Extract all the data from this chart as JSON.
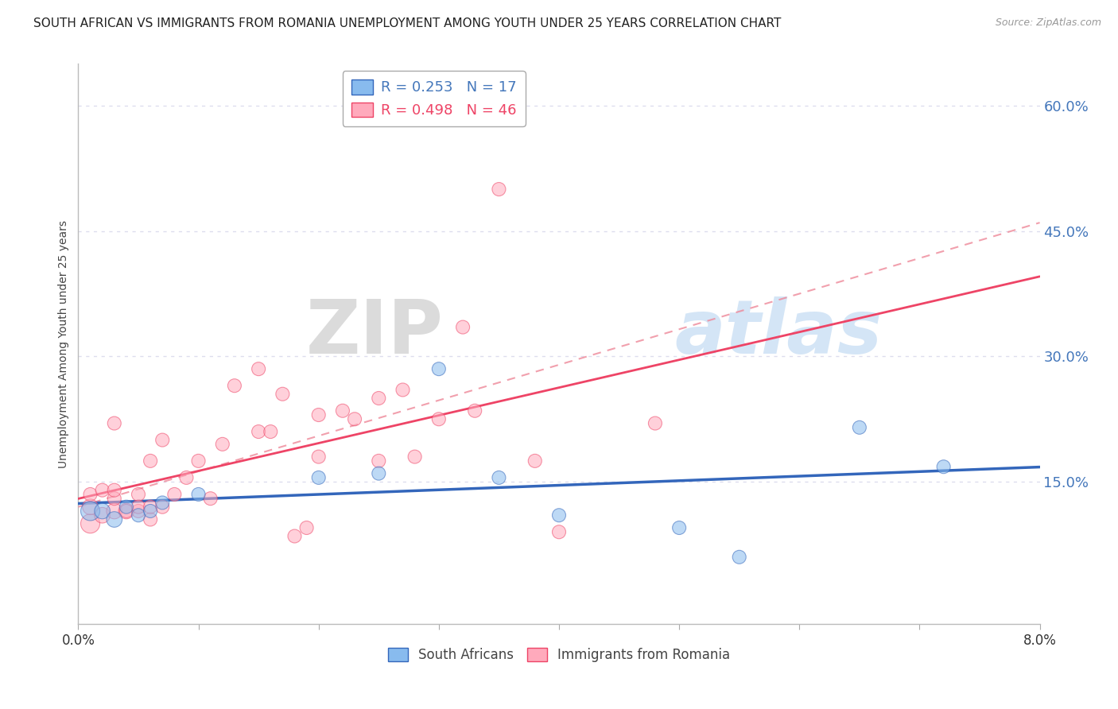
{
  "title": "SOUTH AFRICAN VS IMMIGRANTS FROM ROMANIA UNEMPLOYMENT AMONG YOUTH UNDER 25 YEARS CORRELATION CHART",
  "source": "Source: ZipAtlas.com",
  "ylabel": "Unemployment Among Youth under 25 years",
  "xlim": [
    0.0,
    0.08
  ],
  "ylim": [
    -0.02,
    0.65
  ],
  "yticks": [
    0.15,
    0.3,
    0.45,
    0.6
  ],
  "ytick_labels": [
    "15.0%",
    "30.0%",
    "45.0%",
    "60.0%"
  ],
  "xticks": [
    0.0,
    0.01,
    0.02,
    0.03,
    0.04,
    0.05,
    0.06,
    0.07,
    0.08
  ],
  "xtick_labels": [
    "0.0%",
    "",
    "",
    "",
    "",
    "",
    "",
    "",
    "8.0%"
  ],
  "blue_R": 0.253,
  "blue_N": 17,
  "pink_R": 0.498,
  "pink_N": 46,
  "blue_color": "#88BBEE",
  "pink_color": "#FFAABC",
  "blue_line_color": "#3366BB",
  "pink_line_color": "#EE4466",
  "pink_dash_color": "#EE8899",
  "blue_scatter_x": [
    0.001,
    0.002,
    0.003,
    0.004,
    0.005,
    0.006,
    0.007,
    0.01,
    0.02,
    0.025,
    0.03,
    0.035,
    0.04,
    0.05,
    0.055,
    0.065,
    0.072
  ],
  "blue_scatter_y": [
    0.115,
    0.115,
    0.105,
    0.12,
    0.11,
    0.115,
    0.125,
    0.135,
    0.155,
    0.16,
    0.285,
    0.155,
    0.11,
    0.095,
    0.06,
    0.215,
    0.168
  ],
  "blue_scatter_size": [
    300,
    200,
    200,
    150,
    150,
    150,
    150,
    150,
    150,
    150,
    150,
    150,
    150,
    150,
    150,
    150,
    150
  ],
  "pink_scatter_x": [
    0.001,
    0.001,
    0.001,
    0.002,
    0.002,
    0.003,
    0.003,
    0.003,
    0.003,
    0.004,
    0.004,
    0.005,
    0.005,
    0.005,
    0.006,
    0.006,
    0.006,
    0.007,
    0.007,
    0.008,
    0.009,
    0.01,
    0.011,
    0.012,
    0.013,
    0.015,
    0.015,
    0.016,
    0.017,
    0.018,
    0.019,
    0.02,
    0.02,
    0.022,
    0.023,
    0.025,
    0.025,
    0.027,
    0.028,
    0.03,
    0.032,
    0.033,
    0.035,
    0.038,
    0.04,
    0.048
  ],
  "pink_scatter_y": [
    0.1,
    0.12,
    0.135,
    0.11,
    0.14,
    0.115,
    0.13,
    0.14,
    0.22,
    0.115,
    0.115,
    0.115,
    0.135,
    0.12,
    0.105,
    0.12,
    0.175,
    0.12,
    0.2,
    0.135,
    0.155,
    0.175,
    0.13,
    0.195,
    0.265,
    0.21,
    0.285,
    0.21,
    0.255,
    0.085,
    0.095,
    0.18,
    0.23,
    0.235,
    0.225,
    0.25,
    0.175,
    0.26,
    0.18,
    0.225,
    0.335,
    0.235,
    0.5,
    0.175,
    0.09,
    0.22
  ],
  "pink_scatter_size": [
    300,
    200,
    150,
    200,
    150,
    200,
    150,
    150,
    150,
    200,
    150,
    150,
    150,
    150,
    150,
    150,
    150,
    150,
    150,
    150,
    150,
    150,
    150,
    150,
    150,
    150,
    150,
    150,
    150,
    150,
    150,
    150,
    150,
    150,
    150,
    150,
    150,
    150,
    150,
    150,
    150,
    150,
    150,
    150,
    150,
    150
  ],
  "watermark_zip": "ZIP",
  "watermark_atlas": "atlas",
  "background_color": "#FFFFFF",
  "axis_color": "#4477BB",
  "grid_color": "#DDDDEE",
  "title_fontsize": 11,
  "label_fontsize": 10,
  "legend_R_blue_text": "R = 0.253   N = 17",
  "legend_R_pink_text": "R = 0.498   N = 46"
}
